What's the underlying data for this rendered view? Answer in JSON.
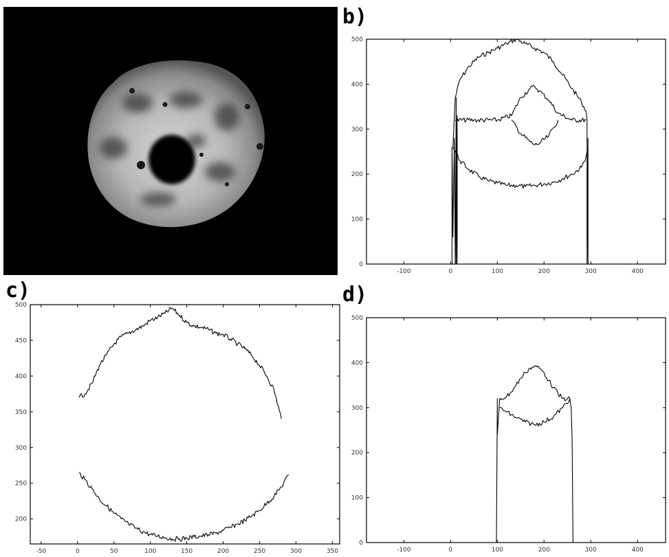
{
  "labels": {
    "a": "a)",
    "b": "b)",
    "c": "c)",
    "d": "d)"
  },
  "image_a": {
    "description": ""
  },
  "chart_data": [
    {
      "panel": "b",
      "type": "line",
      "xlim": [
        -180,
        460
      ],
      "ylim": [
        0,
        500
      ],
      "xticks": [
        -100,
        0,
        100,
        200,
        300,
        400
      ],
      "xtick_labels": [
        "-100",
        "0",
        "100",
        "200",
        "300",
        "400"
      ],
      "yticks": [
        0,
        100,
        200,
        300,
        400,
        500
      ],
      "ytick_labels": [
        "0",
        "100",
        "200",
        "300",
        "400",
        "500"
      ],
      "grid": false,
      "series": [
        {
          "x": [
            5,
            10,
            20,
            40,
            60,
            80,
            100,
            120,
            140,
            160,
            180,
            200,
            220,
            240,
            260,
            280,
            290,
            292
          ],
          "y": [
            260,
            370,
            410,
            440,
            460,
            470,
            480,
            490,
            500,
            490,
            480,
            470,
            450,
            420,
            390,
            360,
            340,
            320
          ]
        },
        {
          "x": [
            5,
            10,
            20,
            40,
            60,
            80,
            100,
            120,
            140,
            160,
            180,
            200,
            220,
            240,
            260,
            280,
            290,
            292
          ],
          "y": [
            260,
            250,
            230,
            210,
            195,
            185,
            180,
            175,
            175,
            172,
            175,
            178,
            182,
            190,
            200,
            215,
            240,
            250
          ]
        },
        {
          "x": [
            10,
            50,
            100,
            130,
            150,
            170,
            180,
            190,
            210,
            230,
            260,
            290
          ],
          "y": [
            320,
            320,
            320,
            330,
            370,
            390,
            395,
            385,
            365,
            335,
            320,
            320
          ]
        },
        {
          "x": [
            130,
            150,
            170,
            180,
            190,
            210,
            230
          ],
          "y": [
            320,
            290,
            272,
            265,
            268,
            285,
            320
          ]
        },
        {
          "x": [
            3,
            3,
            5,
            8,
            10,
            12,
            12,
            14,
            14
          ],
          "y": [
            0,
            260,
            60,
            280,
            0,
            370,
            0,
            330,
            0
          ]
        },
        {
          "x": [
            292,
            292,
            294,
            294
          ],
          "y": [
            320,
            0,
            280,
            0
          ]
        }
      ]
    },
    {
      "panel": "c",
      "type": "line",
      "xlim": [
        -65,
        360
      ],
      "ylim": [
        165,
        500
      ],
      "xticks": [
        -50,
        0,
        50,
        100,
        150,
        200,
        250,
        300,
        350
      ],
      "xtick_labels": [
        "-50",
        "0",
        "50",
        "100",
        "150",
        "200",
        "250",
        "300",
        "350"
      ],
      "yticks": [
        200,
        250,
        300,
        350,
        400,
        450,
        500
      ],
      "ytick_labels": [
        "200",
        "250",
        "300",
        "350",
        "400",
        "450",
        "500"
      ],
      "grid": false,
      "series": [
        {
          "x": [
            2,
            10,
            20,
            30,
            40,
            50,
            60,
            70,
            80,
            90,
            100,
            110,
            120,
            130,
            140,
            150,
            160,
            170,
            180,
            190,
            200,
            210,
            220,
            230,
            240,
            250,
            260,
            270,
            280
          ],
          "y": [
            370,
            375,
            390,
            415,
            430,
            445,
            455,
            460,
            465,
            470,
            478,
            482,
            488,
            495,
            485,
            475,
            470,
            468,
            465,
            460,
            458,
            452,
            445,
            438,
            428,
            415,
            400,
            380,
            340
          ]
        },
        {
          "x": [
            2,
            10,
            20,
            30,
            40,
            50,
            60,
            70,
            80,
            90,
            100,
            110,
            120,
            130,
            140,
            150,
            160,
            170,
            180,
            190,
            200,
            210,
            220,
            230,
            240,
            250,
            260,
            270,
            280,
            290
          ],
          "y": [
            265,
            255,
            242,
            228,
            218,
            208,
            200,
            193,
            187,
            182,
            178,
            176,
            174,
            172,
            172,
            173,
            175,
            176,
            178,
            180,
            184,
            188,
            193,
            198,
            205,
            212,
            222,
            232,
            245,
            262
          ]
        }
      ]
    },
    {
      "panel": "d",
      "type": "line",
      "xlim": [
        -180,
        460
      ],
      "ylim": [
        0,
        500
      ],
      "xticks": [
        -100,
        0,
        100,
        200,
        300,
        400
      ],
      "xtick_labels": [
        "-100",
        "0",
        "100",
        "200",
        "300",
        "400"
      ],
      "yticks": [
        0,
        100,
        200,
        300,
        400,
        500
      ],
      "ytick_labels": [
        "0",
        "100",
        "200",
        "300",
        "400",
        "500"
      ],
      "grid": false,
      "series": [
        {
          "x": [
            98,
            100,
            100,
            105,
            110,
            120,
            130,
            140,
            150,
            160,
            170,
            180,
            190,
            200,
            210,
            220,
            230,
            240,
            250,
            255,
            258,
            260,
            262
          ],
          "y": [
            0,
            320,
            240,
            320,
            320,
            325,
            335,
            350,
            365,
            378,
            388,
            392,
            388,
            378,
            360,
            345,
            330,
            320,
            320,
            320,
            300,
            230,
            0
          ]
        },
        {
          "x": [
            105,
            120,
            140,
            160,
            180,
            200,
            220,
            240,
            255
          ],
          "y": [
            300,
            290,
            278,
            268,
            262,
            268,
            280,
            300,
            320
          ]
        }
      ]
    }
  ]
}
